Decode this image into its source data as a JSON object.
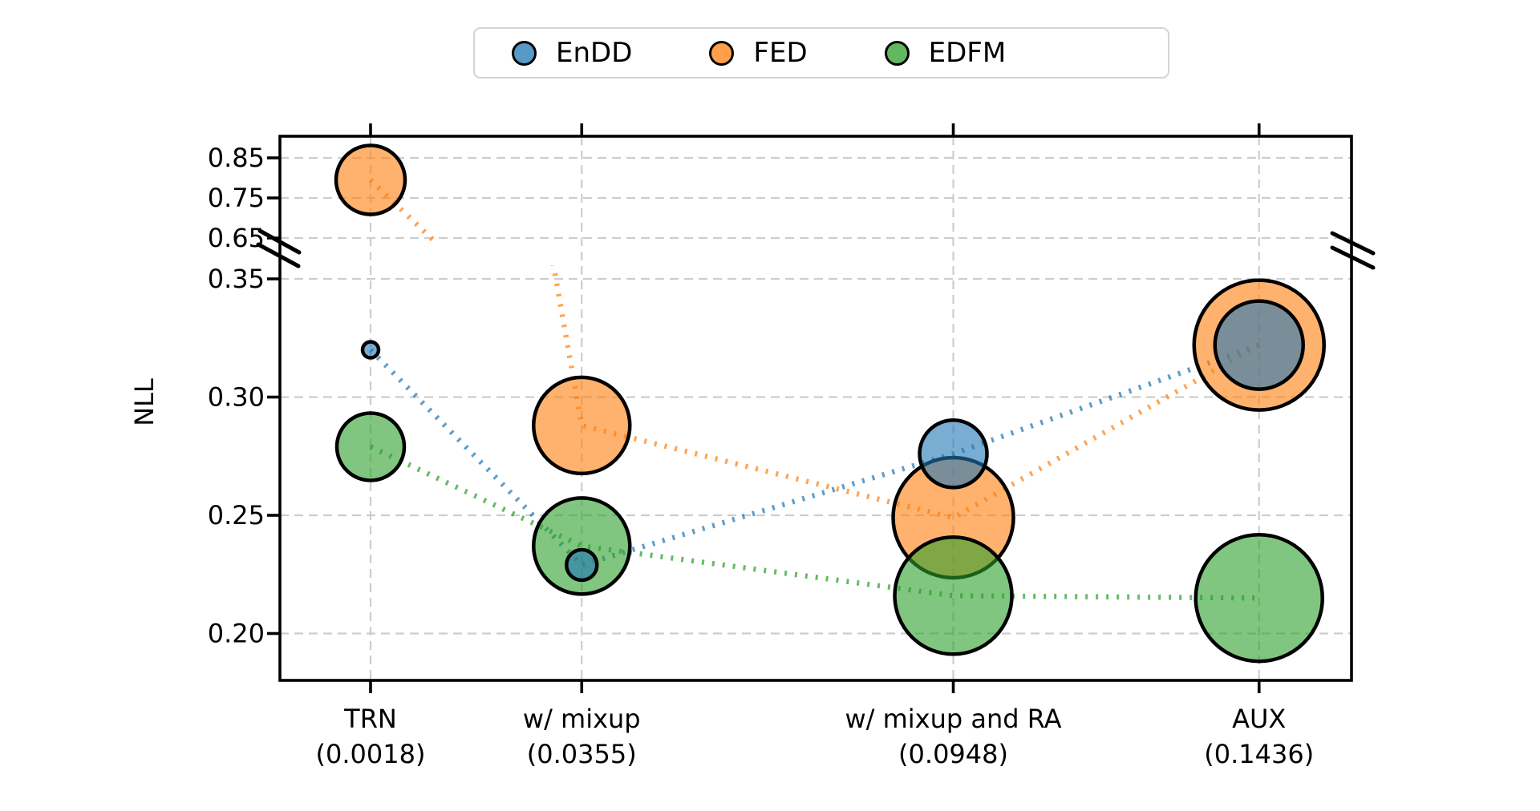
{
  "figure": {
    "background": "#ffffff"
  },
  "legend": {
    "items": [
      {
        "label": "EnDD",
        "color": "#1f77b4"
      },
      {
        "label": "FED",
        "color": "#ff7f0e"
      },
      {
        "label": "EDFM",
        "color": "#2ca02c"
      }
    ]
  },
  "chart_data": {
    "type": "scatter",
    "subtype": "bubble",
    "title": "",
    "ylabel": "NLL",
    "xlabel": "",
    "grid": true,
    "legend_position": "top-center",
    "x_axis": {
      "categories": [
        "TRN",
        "w/ mixup",
        "w/ mixup and RA",
        "AUX"
      ],
      "shift_values": [
        0.0018,
        0.0355,
        0.0948,
        0.1436
      ],
      "tick_labels": [
        "TRN\n(0.0018)",
        "w/ mixup\n(0.0355)",
        "w/ mixup and RA\n(0.0948)",
        "AUX\n(0.1436)"
      ]
    },
    "y_axis": {
      "label": "NLL",
      "broken": true,
      "upper_ticks": [
        0.85,
        0.75,
        0.65
      ],
      "lower_ticks": [
        0.35,
        0.3,
        0.25,
        0.2
      ],
      "upper_visible_range": [
        0.635,
        0.904
      ],
      "lower_visible_range": [
        0.181,
        0.356
      ]
    },
    "series": [
      {
        "name": "EnDD",
        "color": "#1f77b4",
        "values": [
          0.32,
          0.229,
          0.276,
          0.322
        ],
        "bubble_radius_px": [
          10,
          19,
          42,
          55
        ]
      },
      {
        "name": "FED",
        "color": "#ff7f0e",
        "values": [
          0.795,
          0.288,
          0.249,
          0.322
        ],
        "bubble_radius_px": [
          43,
          60,
          75,
          81
        ]
      },
      {
        "name": "EDFM",
        "color": "#2ca02c",
        "values": [
          0.279,
          0.237,
          0.216,
          0.215
        ],
        "bubble_radius_px": [
          42,
          60,
          73,
          79
        ]
      }
    ],
    "style": {
      "line_style": "dotted",
      "marker_edge_color": "#000000",
      "fill_alpha": 0.6,
      "line_alpha": 0.72,
      "grid_color": "#cdcdcd",
      "spine_color": "#000000"
    }
  }
}
